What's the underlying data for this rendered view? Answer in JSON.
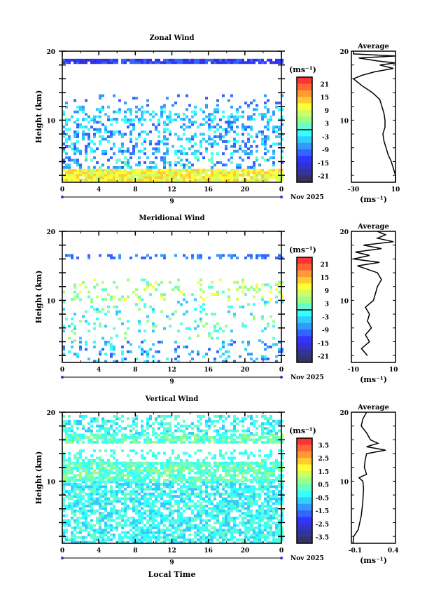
{
  "date_label": "Nov 2025",
  "day_label": "9",
  "xlabel": "Local Time",
  "ylabel": "Height (km)",
  "units": "(ms⁻¹)",
  "avg_title": "Average",
  "colors": [
    "#ff3333",
    "#ff6633",
    "#ff9933",
    "#ffcc33",
    "#ffff33",
    "#ccff66",
    "#99ff88",
    "#66ffcc",
    "#33ffff",
    "#33ccff",
    "#3399ff",
    "#3366ff",
    "#3333ff",
    "#3333cc",
    "#333399",
    "#333366"
  ],
  "chart_data": [
    {
      "type": "heatmap",
      "title": "Zonal Wind",
      "x_ticks": [
        "0",
        "4",
        "8",
        "12",
        "16",
        "20",
        "0"
      ],
      "y_ticks": [
        "20",
        "10"
      ],
      "xlim": [
        0,
        24
      ],
      "ylim": [
        1,
        20
      ],
      "colorbar_ticks": [
        "21",
        "15",
        "9",
        "3",
        "-3",
        "-9",
        "-15",
        "-21"
      ],
      "average": {
        "title": "Average",
        "xlim": [
          -32,
          10
        ],
        "x_ticks": [
          "-30",
          "10"
        ],
        "y_ticks": [
          "20",
          "10"
        ],
        "profile": [
          [
            1,
            10
          ],
          [
            2,
            10
          ],
          [
            3,
            8
          ],
          [
            4,
            6
          ],
          [
            5,
            3
          ],
          [
            6,
            1
          ],
          [
            7,
            -1
          ],
          [
            8,
            -2
          ],
          [
            9,
            0
          ],
          [
            10,
            0
          ],
          [
            11,
            -1
          ],
          [
            12,
            -3
          ],
          [
            13,
            -5
          ],
          [
            14,
            -12
          ],
          [
            15,
            -22
          ],
          [
            16,
            -30
          ],
          [
            16.5,
            -22
          ],
          [
            17,
            -10
          ],
          [
            17.5,
            8
          ],
          [
            18,
            -5
          ],
          [
            18.3,
            10
          ],
          [
            18.6,
            -8
          ],
          [
            19,
            -25
          ],
          [
            19.3,
            10
          ],
          [
            19.6,
            -30
          ],
          [
            20,
            -30
          ]
        ]
      }
    },
    {
      "type": "heatmap",
      "title": "Meridional Wind",
      "x_ticks": [
        "0",
        "4",
        "8",
        "12",
        "16",
        "20",
        "0"
      ],
      "y_ticks": [
        "20",
        "10"
      ],
      "xlim": [
        0,
        24
      ],
      "ylim": [
        1,
        20
      ],
      "colorbar_ticks": [
        "21",
        "15",
        "9",
        "3",
        "-3",
        "-9",
        "-15",
        "-21"
      ],
      "average": {
        "title": "Average",
        "xlim": [
          -11,
          11
        ],
        "x_ticks": [
          "-10",
          "10"
        ],
        "y_ticks": [
          "20",
          "10"
        ],
        "profile": [
          [
            2,
            -3
          ],
          [
            3,
            -6
          ],
          [
            4,
            -2
          ],
          [
            5,
            -4
          ],
          [
            6,
            -1
          ],
          [
            7,
            -3
          ],
          [
            8,
            -2
          ],
          [
            9,
            -4
          ],
          [
            10,
            0
          ],
          [
            11,
            1
          ],
          [
            12,
            2
          ],
          [
            13,
            4
          ],
          [
            14,
            2
          ],
          [
            15,
            -8
          ],
          [
            15.5,
            3
          ],
          [
            16,
            -10
          ],
          [
            16.5,
            -2
          ],
          [
            17,
            -9
          ],
          [
            17.5,
            4
          ],
          [
            18,
            -5
          ],
          [
            18.5,
            10
          ],
          [
            19,
            2
          ],
          [
            19.5,
            6
          ],
          [
            20,
            2
          ]
        ]
      }
    },
    {
      "type": "heatmap",
      "title": "Vertical Wind",
      "x_ticks": [
        "0",
        "4",
        "8",
        "12",
        "16",
        "20",
        "0"
      ],
      "y_ticks": [
        "20",
        "10"
      ],
      "xlim": [
        0,
        24
      ],
      "ylim": [
        1,
        20
      ],
      "colorbar_ticks": [
        "3.5",
        "2.5",
        "1.5",
        "0.5",
        "-0.5",
        "-1.5",
        "-2.5",
        "-3.5"
      ],
      "average": {
        "title": "Average",
        "xlim": [
          -0.15,
          0.43
        ],
        "x_ticks": [
          "-0.1",
          "0.4"
        ],
        "y_ticks": [
          "20",
          "10"
        ],
        "profile": [
          [
            1,
            -0.13
          ],
          [
            2,
            -0.12
          ],
          [
            3,
            -0.06
          ],
          [
            5,
            -0.02
          ],
          [
            7,
            0.0
          ],
          [
            9,
            0.01
          ],
          [
            10,
            0.0
          ],
          [
            10.5,
            -0.05
          ],
          [
            11,
            0.05
          ],
          [
            12,
            0.02
          ],
          [
            13,
            0.03
          ],
          [
            14,
            0.05
          ],
          [
            14.5,
            0.3
          ],
          [
            15,
            0.05
          ],
          [
            15.5,
            0.2
          ],
          [
            16,
            0.1
          ],
          [
            17,
            0.05
          ],
          [
            18,
            -0.02
          ],
          [
            19,
            0.0
          ],
          [
            20,
            0.05
          ]
        ]
      }
    }
  ]
}
